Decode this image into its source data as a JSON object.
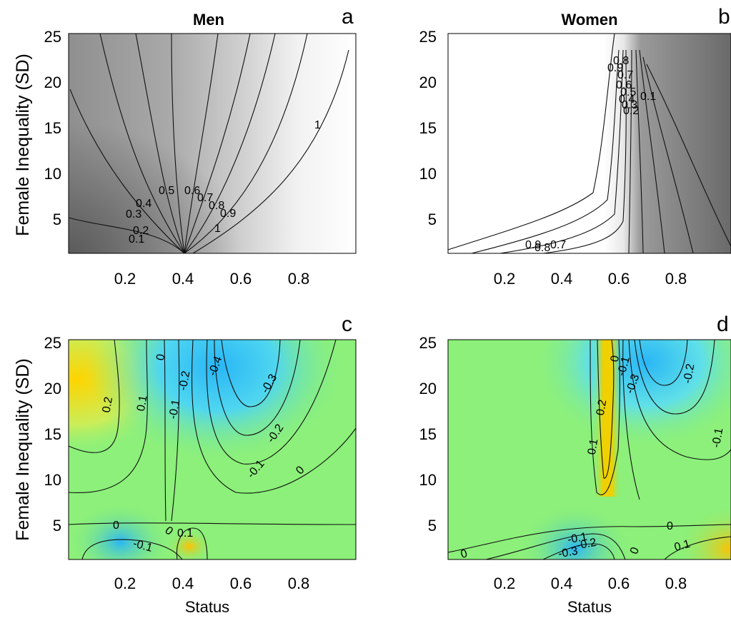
{
  "chart_data": [
    {
      "panel": "a",
      "type": "heatmap",
      "title": "Men",
      "xlabel": "",
      "ylabel": "Female Inequality (SD)",
      "xlim": [
        0,
        1
      ],
      "ylim": [
        1,
        25
      ],
      "x_ticks": [
        "0.2",
        "0.4",
        "0.6",
        "0.8"
      ],
      "y_ticks": [
        "5",
        "10",
        "15",
        "20",
        "25"
      ],
      "colormap": "gray",
      "contour_labels": [
        "0.1",
        "0.2",
        "0.3",
        "0.4",
        "0.5",
        "0.6",
        "0.7",
        "0.8",
        "0.9",
        "1",
        "1"
      ],
      "contour_levels": [
        0.1,
        0.2,
        0.3,
        0.4,
        0.5,
        0.6,
        0.7,
        0.8,
        0.9,
        1.0
      ]
    },
    {
      "panel": "b",
      "type": "heatmap",
      "title": "Women",
      "xlabel": "",
      "ylabel": "",
      "xlim": [
        0,
        1
      ],
      "ylim": [
        1,
        25
      ],
      "x_ticks": [
        "0.2",
        "0.4",
        "0.6",
        "0.8"
      ],
      "y_ticks": [
        "5",
        "10",
        "15",
        "20",
        "25"
      ],
      "colormap": "gray",
      "contour_labels": [
        "0.9",
        "0.8",
        "0.7",
        "0.6",
        "0.5",
        "0.4",
        "0.3",
        "0.2",
        "0.1",
        "0.9",
        "0.8",
        "0.7"
      ],
      "contour_levels": [
        0.1,
        0.2,
        0.3,
        0.4,
        0.5,
        0.6,
        0.7,
        0.8,
        0.9
      ]
    },
    {
      "panel": "c",
      "type": "heatmap",
      "title": "",
      "xlabel": "Status",
      "ylabel": "Female Inequality (SD)",
      "xlim": [
        0,
        1
      ],
      "ylim": [
        1,
        25
      ],
      "x_ticks": [
        "0.2",
        "0.4",
        "0.6",
        "0.8"
      ],
      "y_ticks": [
        "5",
        "10",
        "15",
        "20",
        "25"
      ],
      "colormap": "jet",
      "contour_labels": [
        "0.2",
        "0.1",
        "0",
        "-0.1",
        "-0.2",
        "-0.4",
        "-0.3",
        "-0.2",
        "-0.1",
        "0",
        "0",
        "-0.1",
        "0",
        "0.1"
      ],
      "contour_levels": [
        -0.4,
        -0.3,
        -0.2,
        -0.1,
        0,
        0.1,
        0.2
      ]
    },
    {
      "panel": "d",
      "type": "heatmap",
      "title": "",
      "xlabel": "Status",
      "ylabel": "",
      "xlim": [
        0,
        1
      ],
      "ylim": [
        1,
        25
      ],
      "x_ticks": [
        "0.2",
        "0.4",
        "0.6",
        "0.8"
      ],
      "y_ticks": [
        "5",
        "10",
        "15",
        "20",
        "25"
      ],
      "colormap": "jet",
      "contour_labels": [
        "0.1",
        "0.2",
        "0",
        "-0.1",
        "-0.3",
        "-0.2",
        "-0.1",
        "0",
        "-0.1",
        "-0.2",
        "-0.3",
        "0",
        "0",
        "0.1"
      ],
      "contour_levels": [
        -0.3,
        -0.2,
        -0.1,
        0,
        0.1,
        0.2
      ]
    }
  ],
  "panels": {
    "a": {
      "letter": "a",
      "title": "Men",
      "ylabel": "Female Inequality (SD)",
      "xlabel": ""
    },
    "b": {
      "letter": "b",
      "title": "Women",
      "ylabel": "",
      "xlabel": ""
    },
    "c": {
      "letter": "c",
      "title": "",
      "ylabel": "Female Inequality (SD)",
      "xlabel": "Status"
    },
    "d": {
      "letter": "d",
      "title": "",
      "ylabel": "",
      "xlabel": "Status"
    }
  }
}
